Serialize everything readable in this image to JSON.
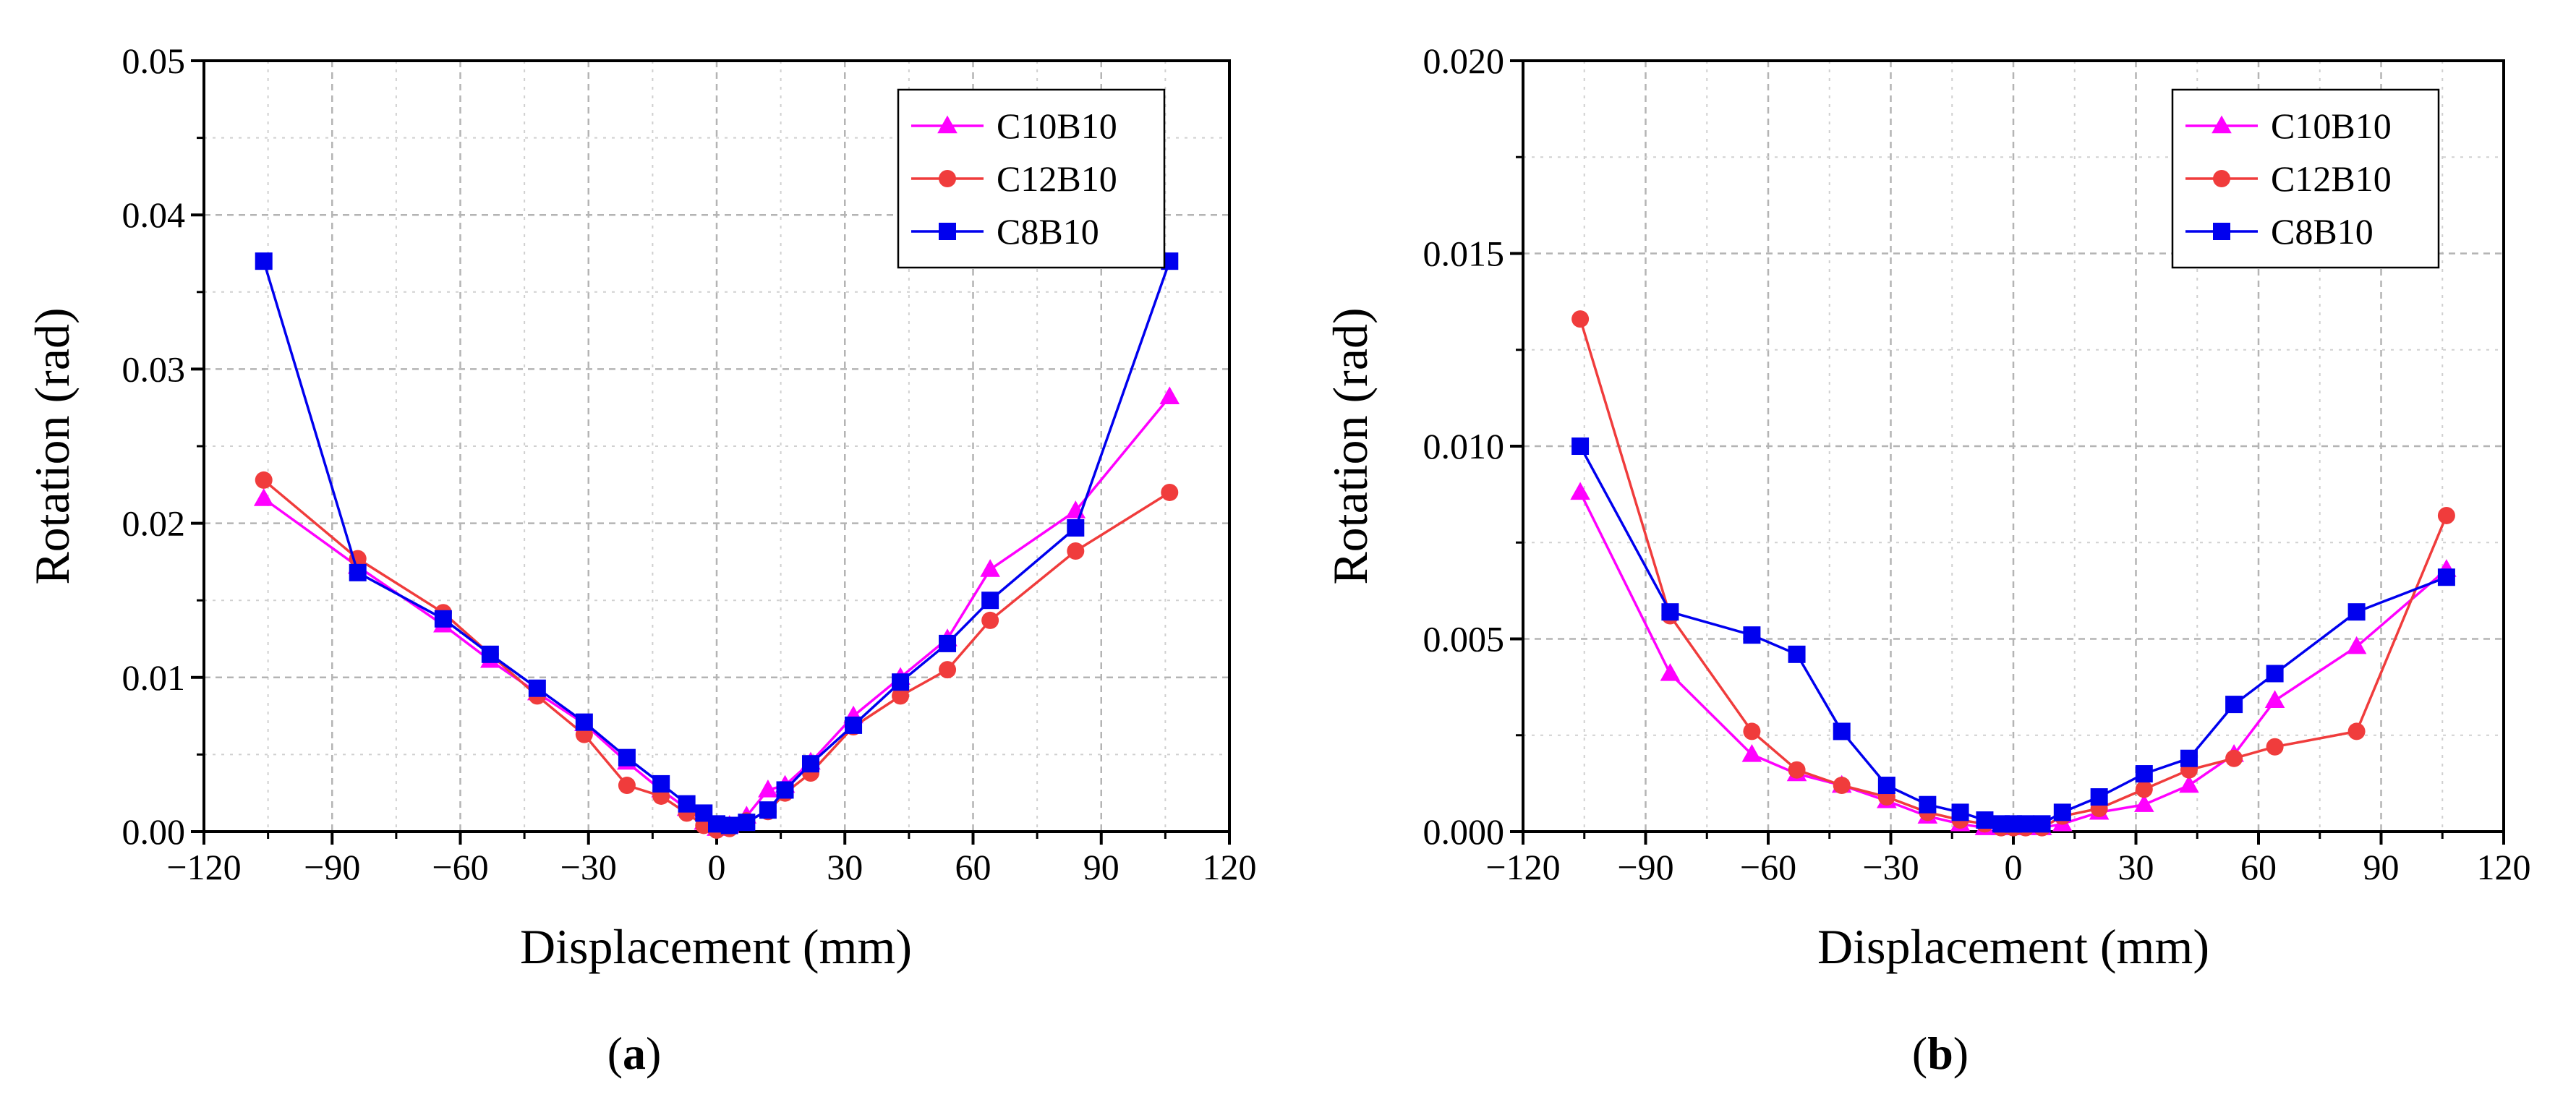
{
  "colors": {
    "C10B10": "#ff00ff",
    "C12B10": "#f03c3c",
    "C8B10": "#0000ee"
  },
  "chart_data": [
    {
      "type": "line",
      "panel_label": {
        "open": "(",
        "letter": "a",
        "close": ")"
      },
      "xlabel": "Displacement (mm)",
      "ylabel": "Rotation (rad)",
      "xlim": [
        -120,
        120
      ],
      "ylim": [
        0,
        0.05
      ],
      "xticks": [
        -120,
        -90,
        -60,
        -30,
        0,
        30,
        60,
        90,
        120
      ],
      "xtick_labels": [
        "−120",
        "−90",
        "−60",
        "−30",
        "0",
        "30",
        "60",
        "90",
        "120"
      ],
      "yticks": [
        0,
        0.01,
        0.02,
        0.03,
        0.04,
        0.05
      ],
      "ytick_labels": [
        "0.00",
        "0.01",
        "0.02",
        "0.03",
        "0.04",
        "0.05"
      ],
      "grid": true,
      "legend": "top-right",
      "series": [
        {
          "name": "C10B10",
          "marker": "triangle",
          "x": [
            -106,
            -84,
            -64,
            -53,
            -42,
            -31,
            -21,
            -13,
            -7,
            -3,
            0,
            3,
            7,
            12,
            16,
            22,
            32,
            43,
            54,
            64,
            84,
            106
          ],
          "y": [
            0.0216,
            0.0172,
            0.0134,
            0.0111,
            0.009,
            0.007,
            0.0045,
            0.0027,
            0.0015,
            0.0006,
            0.0002,
            0.0004,
            0.001,
            0.0027,
            0.003,
            0.0045,
            0.0075,
            0.01,
            0.0125,
            0.017,
            0.0208,
            0.0282
          ]
        },
        {
          "name": "C12B10",
          "marker": "circle",
          "x": [
            -106,
            -84,
            -64,
            -53,
            -42,
            -31,
            -21,
            -13,
            -7,
            -3,
            0,
            3,
            7,
            12,
            16,
            22,
            32,
            43,
            54,
            64,
            84,
            106
          ],
          "y": [
            0.0228,
            0.0177,
            0.0142,
            0.0115,
            0.0088,
            0.0063,
            0.003,
            0.0023,
            0.0012,
            0.0004,
            0.0001,
            0.0002,
            0.0007,
            0.0013,
            0.0025,
            0.0038,
            0.0068,
            0.0088,
            0.0105,
            0.0137,
            0.0182,
            0.022
          ]
        },
        {
          "name": "C8B10",
          "marker": "square",
          "x": [
            -106,
            -84,
            -64,
            -53,
            -42,
            -31,
            -21,
            -13,
            -7,
            -3,
            0,
            3,
            7,
            12,
            16,
            22,
            32,
            43,
            54,
            64,
            84,
            106
          ],
          "y": [
            0.037,
            0.0168,
            0.0138,
            0.0115,
            0.0093,
            0.0071,
            0.0048,
            0.0031,
            0.0018,
            0.0012,
            0.0005,
            0.0004,
            0.0006,
            0.0014,
            0.0027,
            0.0044,
            0.0069,
            0.0097,
            0.0122,
            0.015,
            0.0197,
            0.037
          ]
        }
      ]
    },
    {
      "type": "line",
      "panel_label": {
        "open": "(",
        "letter": "b",
        "close": ")"
      },
      "xlabel": "Displacement (mm)",
      "ylabel": "Rotation (rad)",
      "xlim": [
        -120,
        120
      ],
      "ylim": [
        0,
        0.02
      ],
      "xticks": [
        -120,
        -90,
        -60,
        -30,
        0,
        30,
        60,
        90,
        120
      ],
      "xtick_labels": [
        "−120",
        "−90",
        "−60",
        "−30",
        "0",
        "30",
        "60",
        "90",
        "120"
      ],
      "yticks": [
        0,
        0.005,
        0.01,
        0.015,
        0.02
      ],
      "ytick_labels": [
        "0.000",
        "0.005",
        "0.010",
        "0.015",
        "0.020"
      ],
      "grid": true,
      "legend": "top-right",
      "series": [
        {
          "name": "C10B10",
          "marker": "triangle",
          "x": [
            -106,
            -84,
            -64,
            -53,
            -42,
            -31,
            -21,
            -13,
            -7,
            -3,
            0,
            3,
            7,
            12,
            21,
            32,
            43,
            54,
            64,
            84,
            106
          ],
          "y": [
            0.0088,
            0.0041,
            0.002,
            0.0015,
            0.0012,
            0.0008,
            0.0004,
            0.0002,
            0.0001,
            0.0001,
            0.0001,
            0.0001,
            0.0001,
            0.0002,
            0.0005,
            0.0007,
            0.0012,
            0.002,
            0.0034,
            0.0048,
            0.0068
          ]
        },
        {
          "name": "C12B10",
          "marker": "circle",
          "x": [
            -106,
            -84,
            -64,
            -53,
            -42,
            -31,
            -21,
            -13,
            -7,
            -3,
            0,
            3,
            7,
            12,
            21,
            32,
            43,
            54,
            64,
            84,
            106
          ],
          "y": [
            0.0133,
            0.0056,
            0.0026,
            0.0016,
            0.0012,
            0.0009,
            0.0005,
            0.0003,
            0.0002,
            0.0001,
            0.0001,
            0.0001,
            0.0001,
            0.0004,
            0.0006,
            0.0011,
            0.0016,
            0.0019,
            0.0022,
            0.0026,
            0.0082
          ]
        },
        {
          "name": "C8B10",
          "marker": "square",
          "x": [
            -106,
            -84,
            -64,
            -53,
            -42,
            -31,
            -21,
            -13,
            -7,
            -3,
            0,
            3,
            7,
            12,
            21,
            32,
            43,
            54,
            64,
            84,
            106
          ],
          "y": [
            0.01,
            0.0057,
            0.0051,
            0.0046,
            0.0026,
            0.0012,
            0.0007,
            0.0005,
            0.0003,
            0.0002,
            0.0002,
            0.0002,
            0.0002,
            0.0005,
            0.0009,
            0.0015,
            0.0019,
            0.0033,
            0.0041,
            0.0057,
            0.0066
          ]
        }
      ]
    }
  ]
}
